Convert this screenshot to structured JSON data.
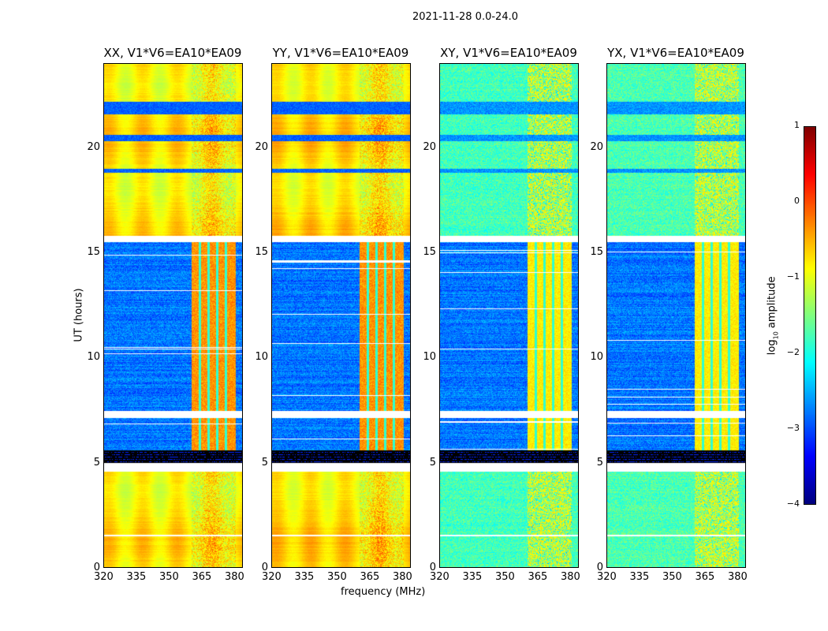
{
  "chart_data": {
    "type": "heatmap",
    "title": "2021-11-28 0.0-24.0",
    "xlabel": "frequency (MHz)",
    "ylabel": "UT (hours)",
    "xlim": [
      320,
      384
    ],
    "ylim": [
      0,
      24
    ],
    "xticks": [
      "320",
      "335",
      "350",
      "365",
      "380"
    ],
    "yticks": [
      "0",
      "5",
      "10",
      "15",
      "20"
    ],
    "panels": [
      {
        "title": "XX, V1*V6=EA10*EA09",
        "pol": "parallel",
        "base_level": -0.85
      },
      {
        "title": "YY, V1*V6=EA10*EA09",
        "pol": "parallel",
        "base_level": -0.8
      },
      {
        "title": "XY, V1*V6=EA10*EA09",
        "pol": "cross",
        "base_level": -1.8
      },
      {
        "title": "YX, V1*V6=EA10*EA09",
        "pol": "cross",
        "base_level": -1.75
      }
    ],
    "time_segments": [
      {
        "start": 0,
        "end": 1.45,
        "state": "bright"
      },
      {
        "start": 1.45,
        "end": 1.55,
        "state": "flag"
      },
      {
        "start": 1.55,
        "end": 4.55,
        "state": "bright"
      },
      {
        "start": 4.55,
        "end": 4.95,
        "state": "flag"
      },
      {
        "start": 4.95,
        "end": 5.55,
        "state": "black"
      },
      {
        "start": 5.55,
        "end": 7.1,
        "state": "dark"
      },
      {
        "start": 7.1,
        "end": 7.45,
        "state": "flag"
      },
      {
        "start": 7.45,
        "end": 15.5,
        "state": "dark"
      },
      {
        "start": 15.5,
        "end": 15.8,
        "state": "flag"
      },
      {
        "start": 15.8,
        "end": 18.8,
        "state": "bright"
      },
      {
        "start": 18.8,
        "end": 19.0,
        "state": "darkband"
      },
      {
        "start": 19.0,
        "end": 20.3,
        "state": "bright"
      },
      {
        "start": 20.3,
        "end": 20.6,
        "state": "darkband"
      },
      {
        "start": 20.6,
        "end": 21.6,
        "state": "bright"
      },
      {
        "start": 21.6,
        "end": 22.2,
        "state": "darkband"
      },
      {
        "start": 22.2,
        "end": 24,
        "state": "bright"
      }
    ],
    "rfi_band_mhz": [
      360.5,
      381
    ],
    "colorbar": {
      "label": "log10 amplitude",
      "range": [
        -4,
        1
      ],
      "ticks": [
        "1",
        "0",
        "−1",
        "−2",
        "−3",
        "−4"
      ],
      "tick_values": [
        1,
        0,
        -1,
        -2,
        -3,
        -4
      ],
      "colormap": "jet"
    }
  }
}
